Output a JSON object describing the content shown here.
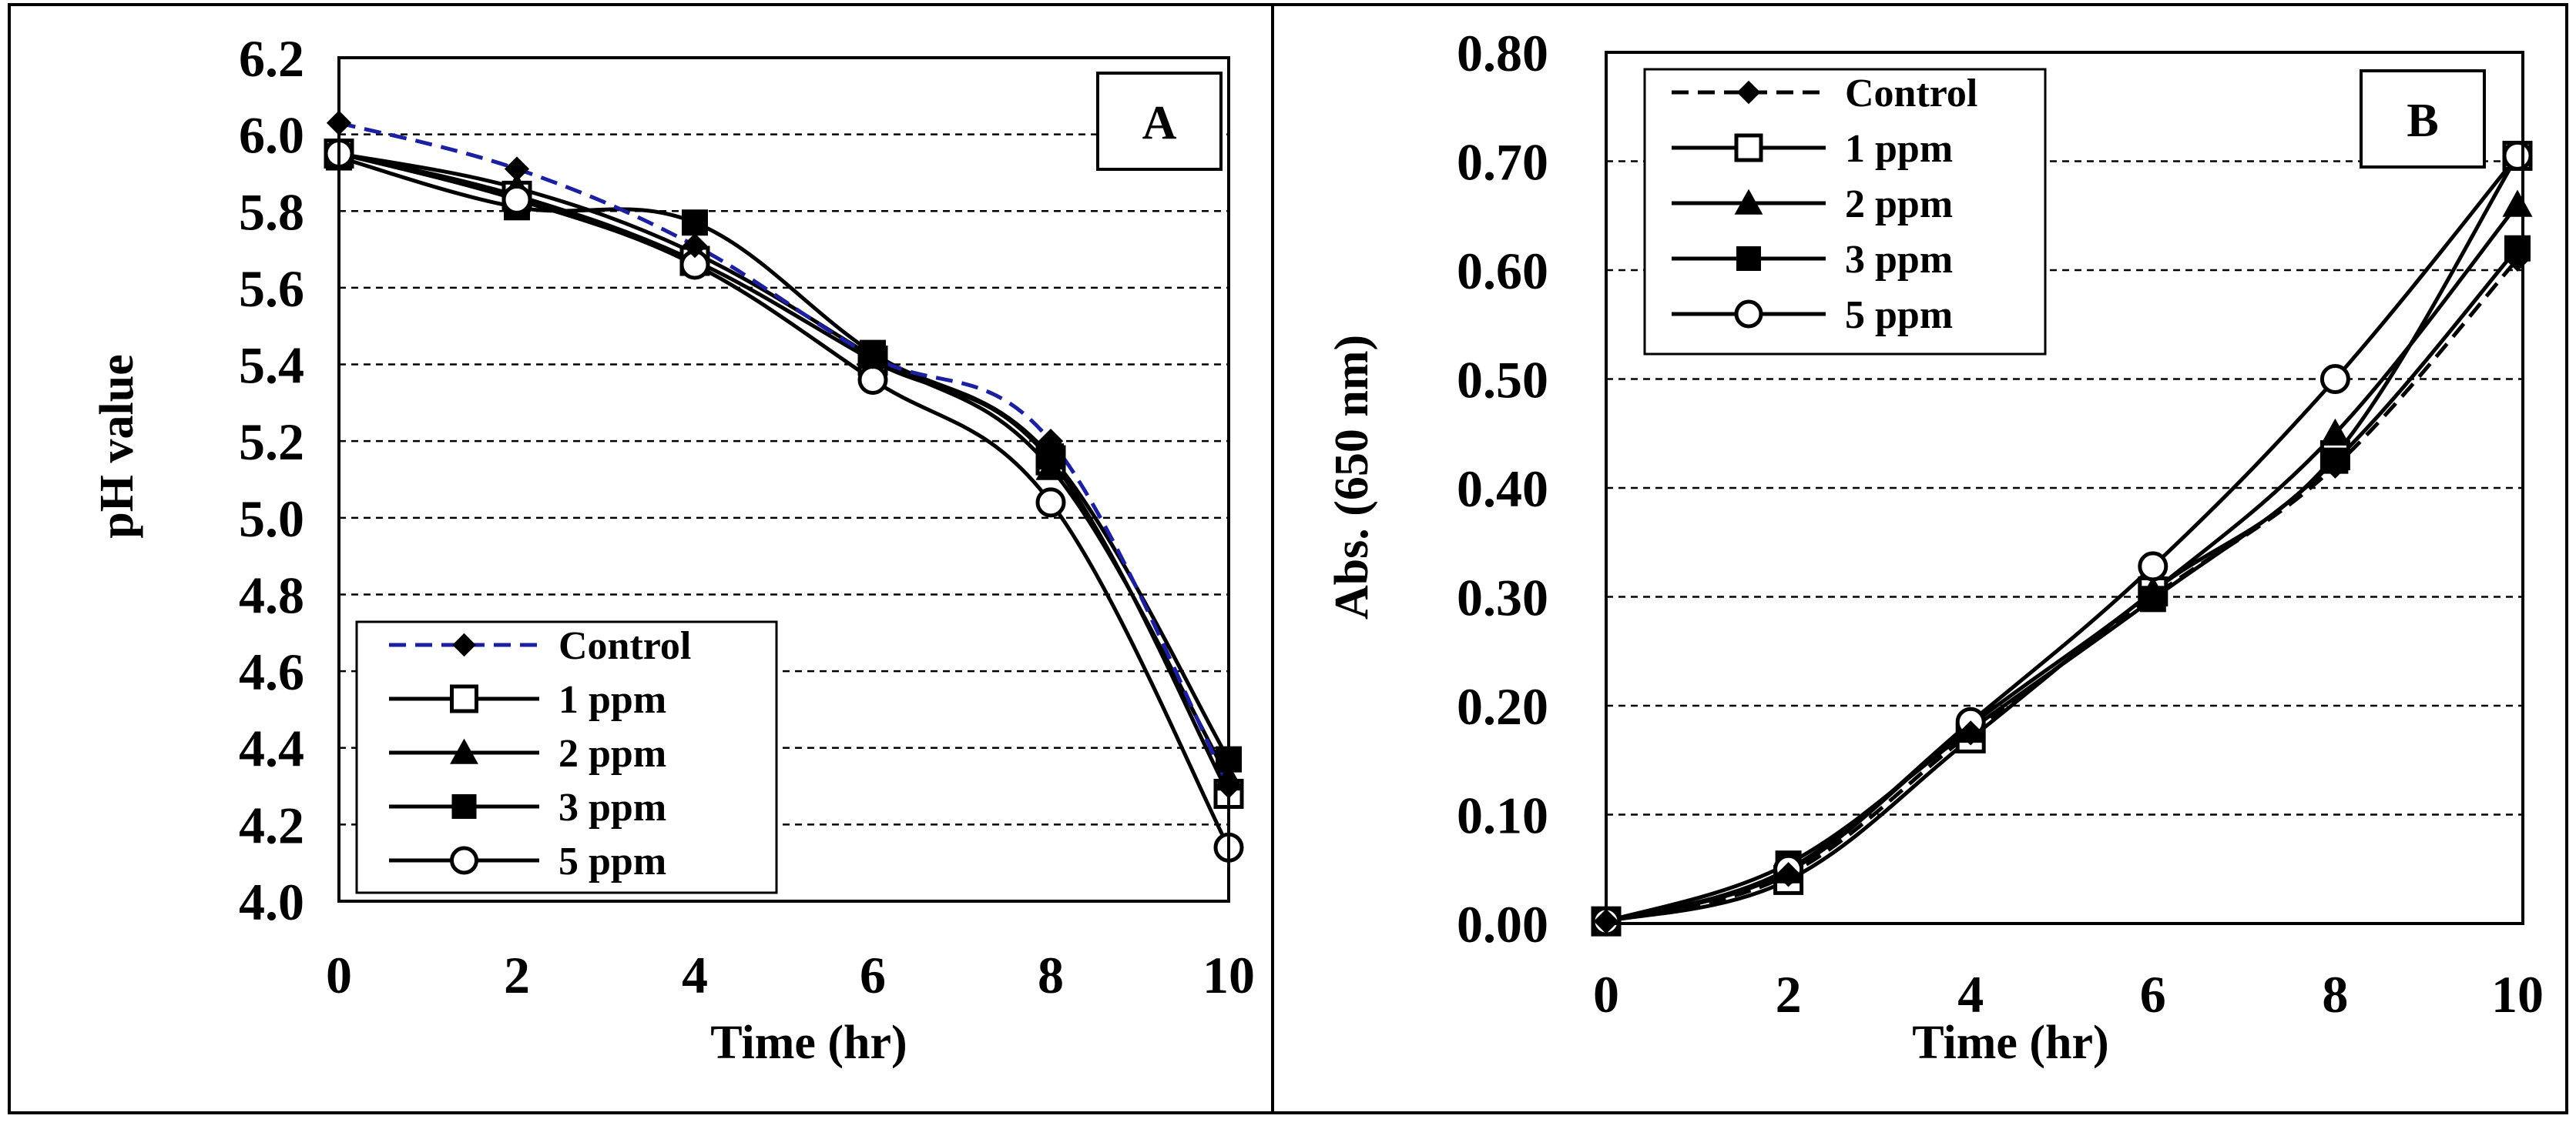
{
  "chart_data": [
    {
      "type": "line",
      "panel": "A",
      "title": "",
      "xlabel": "Time (hr)",
      "ylabel": "pH value",
      "xlim": [
        0,
        10
      ],
      "ylim": [
        4.0,
        6.2
      ],
      "x_ticks": [
        "0",
        "2",
        "4",
        "6",
        "8",
        "10"
      ],
      "y_ticks": [
        "4.0",
        "4.2",
        "4.4",
        "4.6",
        "4.8",
        "5.0",
        "5.2",
        "5.4",
        "5.6",
        "5.8",
        "6.0",
        "6.2"
      ],
      "grid": "horizontal dashed",
      "legend_position": "bottom-left",
      "x": [
        0,
        2,
        4,
        6,
        8,
        10
      ],
      "series": [
        {
          "name": "Control",
          "marker": "diamond",
          "line": "dashed",
          "color": "#1b1fa0",
          "values": [
            6.03,
            5.91,
            5.71,
            5.42,
            5.2,
            4.3
          ]
        },
        {
          "name": "1 ppm",
          "marker": "open-square",
          "line": "solid",
          "color": "#000000",
          "values": [
            5.95,
            5.84,
            5.67,
            5.41,
            5.15,
            4.28
          ]
        },
        {
          "name": "2 ppm",
          "marker": "triangle",
          "line": "solid",
          "color": "#000000",
          "values": [
            5.95,
            5.86,
            5.69,
            5.42,
            5.13,
            4.32
          ]
        },
        {
          "name": "3 ppm",
          "marker": "filled-square",
          "line": "solid",
          "color": "#000000",
          "values": [
            5.94,
            5.81,
            5.77,
            5.43,
            5.16,
            4.37
          ]
        },
        {
          "name": "5 ppm",
          "marker": "open-circle",
          "line": "solid",
          "color": "#000000",
          "values": [
            5.95,
            5.83,
            5.66,
            5.36,
            5.04,
            4.14
          ]
        }
      ]
    },
    {
      "type": "line",
      "panel": "B",
      "title": "",
      "xlabel": "Time (hr)",
      "ylabel": "Abs. (650 nm)",
      "xlim": [
        0,
        10
      ],
      "ylim": [
        0.0,
        0.8
      ],
      "x_ticks": [
        "0",
        "2",
        "4",
        "6",
        "8",
        "10"
      ],
      "y_ticks": [
        "0.00",
        "0.10",
        "0.20",
        "0.30",
        "0.40",
        "0.50",
        "0.60",
        "0.70",
        "0.80"
      ],
      "grid": "horizontal dashed",
      "legend_position": "top-left",
      "x": [
        0,
        2,
        4,
        6,
        8,
        10
      ],
      "series": [
        {
          "name": "Control",
          "marker": "diamond",
          "line": "dashed",
          "color": "#000000",
          "values": [
            0.002,
            0.045,
            0.175,
            0.3,
            0.42,
            0.61
          ]
        },
        {
          "name": "1 ppm",
          "marker": "open-square",
          "line": "solid",
          "color": "#000000",
          "values": [
            0.002,
            0.04,
            0.17,
            0.305,
            0.43,
            0.705
          ]
        },
        {
          "name": "2 ppm",
          "marker": "triangle",
          "line": "solid",
          "color": "#000000",
          "values": [
            0.002,
            0.048,
            0.182,
            0.305,
            0.45,
            0.66
          ]
        },
        {
          "name": "3 ppm",
          "marker": "filled-square",
          "line": "solid",
          "color": "#000000",
          "values": [
            0.002,
            0.055,
            0.178,
            0.298,
            0.425,
            0.62
          ]
        },
        {
          "name": "5 ppm",
          "marker": "open-circle",
          "line": "solid",
          "color": "#000000",
          "values": [
            0.002,
            0.05,
            0.185,
            0.328,
            0.5,
            0.705
          ]
        }
      ]
    }
  ]
}
